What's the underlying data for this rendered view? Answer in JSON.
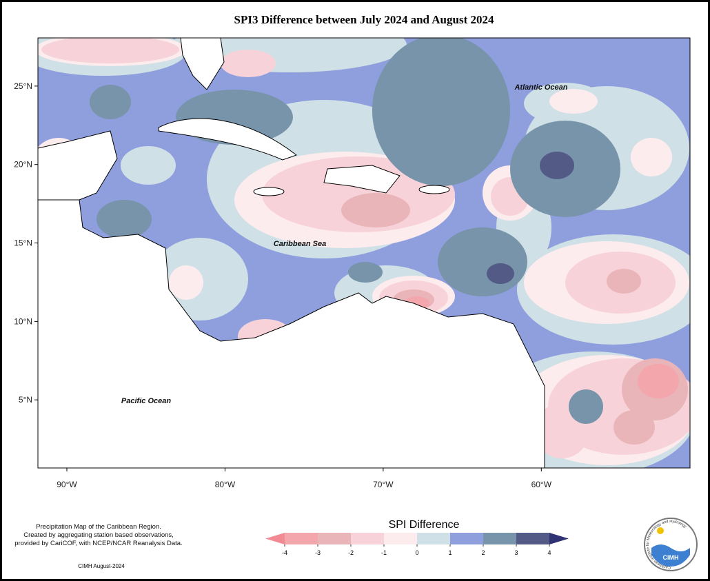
{
  "title": "SPI3 Difference between July 2024 and August 2024",
  "map": {
    "xlim": [
      -91.83,
      -50.6
    ],
    "ylim": [
      0.66,
      28.07
    ],
    "xticks": [
      {
        "value": -90,
        "label": "90°W"
      },
      {
        "value": -80,
        "label": "80°W"
      },
      {
        "value": -70,
        "label": "70°W"
      },
      {
        "value": -60,
        "label": "60°W"
      }
    ],
    "yticks": [
      {
        "value": 5,
        "label": "5°N"
      },
      {
        "value": 10,
        "label": "10°N"
      },
      {
        "value": 15,
        "label": "15°N"
      },
      {
        "value": 20,
        "label": "20°N"
      },
      {
        "value": 25,
        "label": "25°N"
      }
    ],
    "labels": [
      "Atlantic Ocean",
      "Caribbean Sea",
      "Pacific Ocean"
    ]
  },
  "legend": {
    "title": "SPI Difference",
    "ticks": [
      -4,
      -3,
      -2,
      -1,
      0,
      1,
      2,
      3,
      4
    ],
    "colors": [
      "#f28a94",
      "#f4a6ad",
      "#e9b5b9",
      "#f7d3d9",
      "#fdecee",
      "#cfe0e6",
      "#8f9fde",
      "#7894ab",
      "#525a85",
      "#2f3374"
    ]
  },
  "notes": [
    "Precipitation Map of the Caribbean Region.",
    "Created by aggregating station based observations,",
    "provided by CariCOF, with NCEP/NCAR Reanalysis Data."
  ],
  "credit": "CIMH August-2024",
  "logo": {
    "name": "CIMH",
    "ring": "Caribbean Institute for Meteorology and Hydrology"
  }
}
